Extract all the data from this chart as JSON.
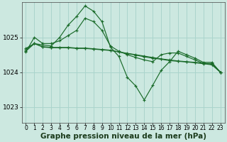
{
  "background_color": "#cce8e0",
  "grid_color": "#aad4cc",
  "line_color": "#1a6b2a",
  "xlabel": "Graphe pression niveau de la mer (hPa)",
  "xlabel_fontsize": 7.5,
  "tick_fontsize": 5.5,
  "ylabel_fontsize": 6.5,
  "yticks": [
    1023,
    1024,
    1025
  ],
  "ylim": [
    1022.55,
    1026.0
  ],
  "xlim": [
    -0.5,
    23.5
  ],
  "xticks": [
    0,
    1,
    2,
    3,
    4,
    5,
    6,
    7,
    8,
    9,
    10,
    11,
    12,
    13,
    14,
    15,
    16,
    17,
    18,
    19,
    20,
    21,
    22,
    23
  ],
  "series": [
    {
      "x": [
        0,
        1,
        2,
        3,
        4,
        5,
        6,
        7,
        8,
        9,
        10,
        11,
        12,
        13,
        14,
        15,
        16,
        17,
        18,
        19,
        20,
        21,
        22,
        23
      ],
      "y": [
        1024.65,
        1024.82,
        1024.72,
        1024.7,
        1024.7,
        1024.7,
        1024.68,
        1024.68,
        1024.66,
        1024.64,
        1024.62,
        1024.58,
        1024.54,
        1024.5,
        1024.46,
        1024.42,
        1024.38,
        1024.35,
        1024.32,
        1024.3,
        1024.28,
        1024.26,
        1024.22,
        1024.0
      ]
    },
    {
      "x": [
        0,
        1,
        2,
        3,
        4,
        5,
        6,
        7,
        8,
        9,
        10,
        11,
        12,
        13,
        14,
        15,
        16,
        17,
        18,
        19,
        20,
        21,
        22,
        23
      ],
      "y": [
        1024.68,
        1024.82,
        1024.73,
        1024.71,
        1024.71,
        1024.71,
        1024.69,
        1024.69,
        1024.67,
        1024.65,
        1024.63,
        1024.58,
        1024.53,
        1024.49,
        1024.44,
        1024.4,
        1024.37,
        1024.33,
        1024.31,
        1024.29,
        1024.27,
        1024.24,
        1024.21,
        1024.0
      ]
    },
    {
      "x": [
        0,
        1,
        2,
        3,
        4,
        5,
        6,
        7,
        8,
        9,
        10,
        11,
        12,
        13,
        14,
        15,
        16,
        17,
        18,
        19,
        20,
        21,
        22,
        23
      ],
      "y": [
        1024.58,
        1025.0,
        1024.82,
        1024.82,
        1024.9,
        1025.05,
        1025.2,
        1025.55,
        1025.45,
        1025.2,
        1024.75,
        1024.6,
        1024.5,
        1024.42,
        1024.35,
        1024.3,
        1024.5,
        1024.55,
        1024.55,
        1024.45,
        1024.35,
        1024.25,
        1024.25,
        1024.0
      ]
    },
    {
      "x": [
        0,
        1,
        2,
        3,
        4,
        5,
        6,
        7,
        8,
        9,
        10,
        11,
        12,
        13,
        14,
        15,
        16,
        17,
        18,
        19,
        20,
        21,
        22,
        23
      ],
      "y": [
        1024.6,
        1024.82,
        1024.78,
        1024.75,
        1025.0,
        1025.35,
        1025.6,
        1025.9,
        1025.75,
        1025.45,
        1024.72,
        1024.45,
        1023.85,
        1023.6,
        1023.2,
        1023.62,
        1024.05,
        1024.3,
        1024.6,
        1024.5,
        1024.4,
        1024.28,
        1024.28,
        1024.0
      ]
    }
  ]
}
